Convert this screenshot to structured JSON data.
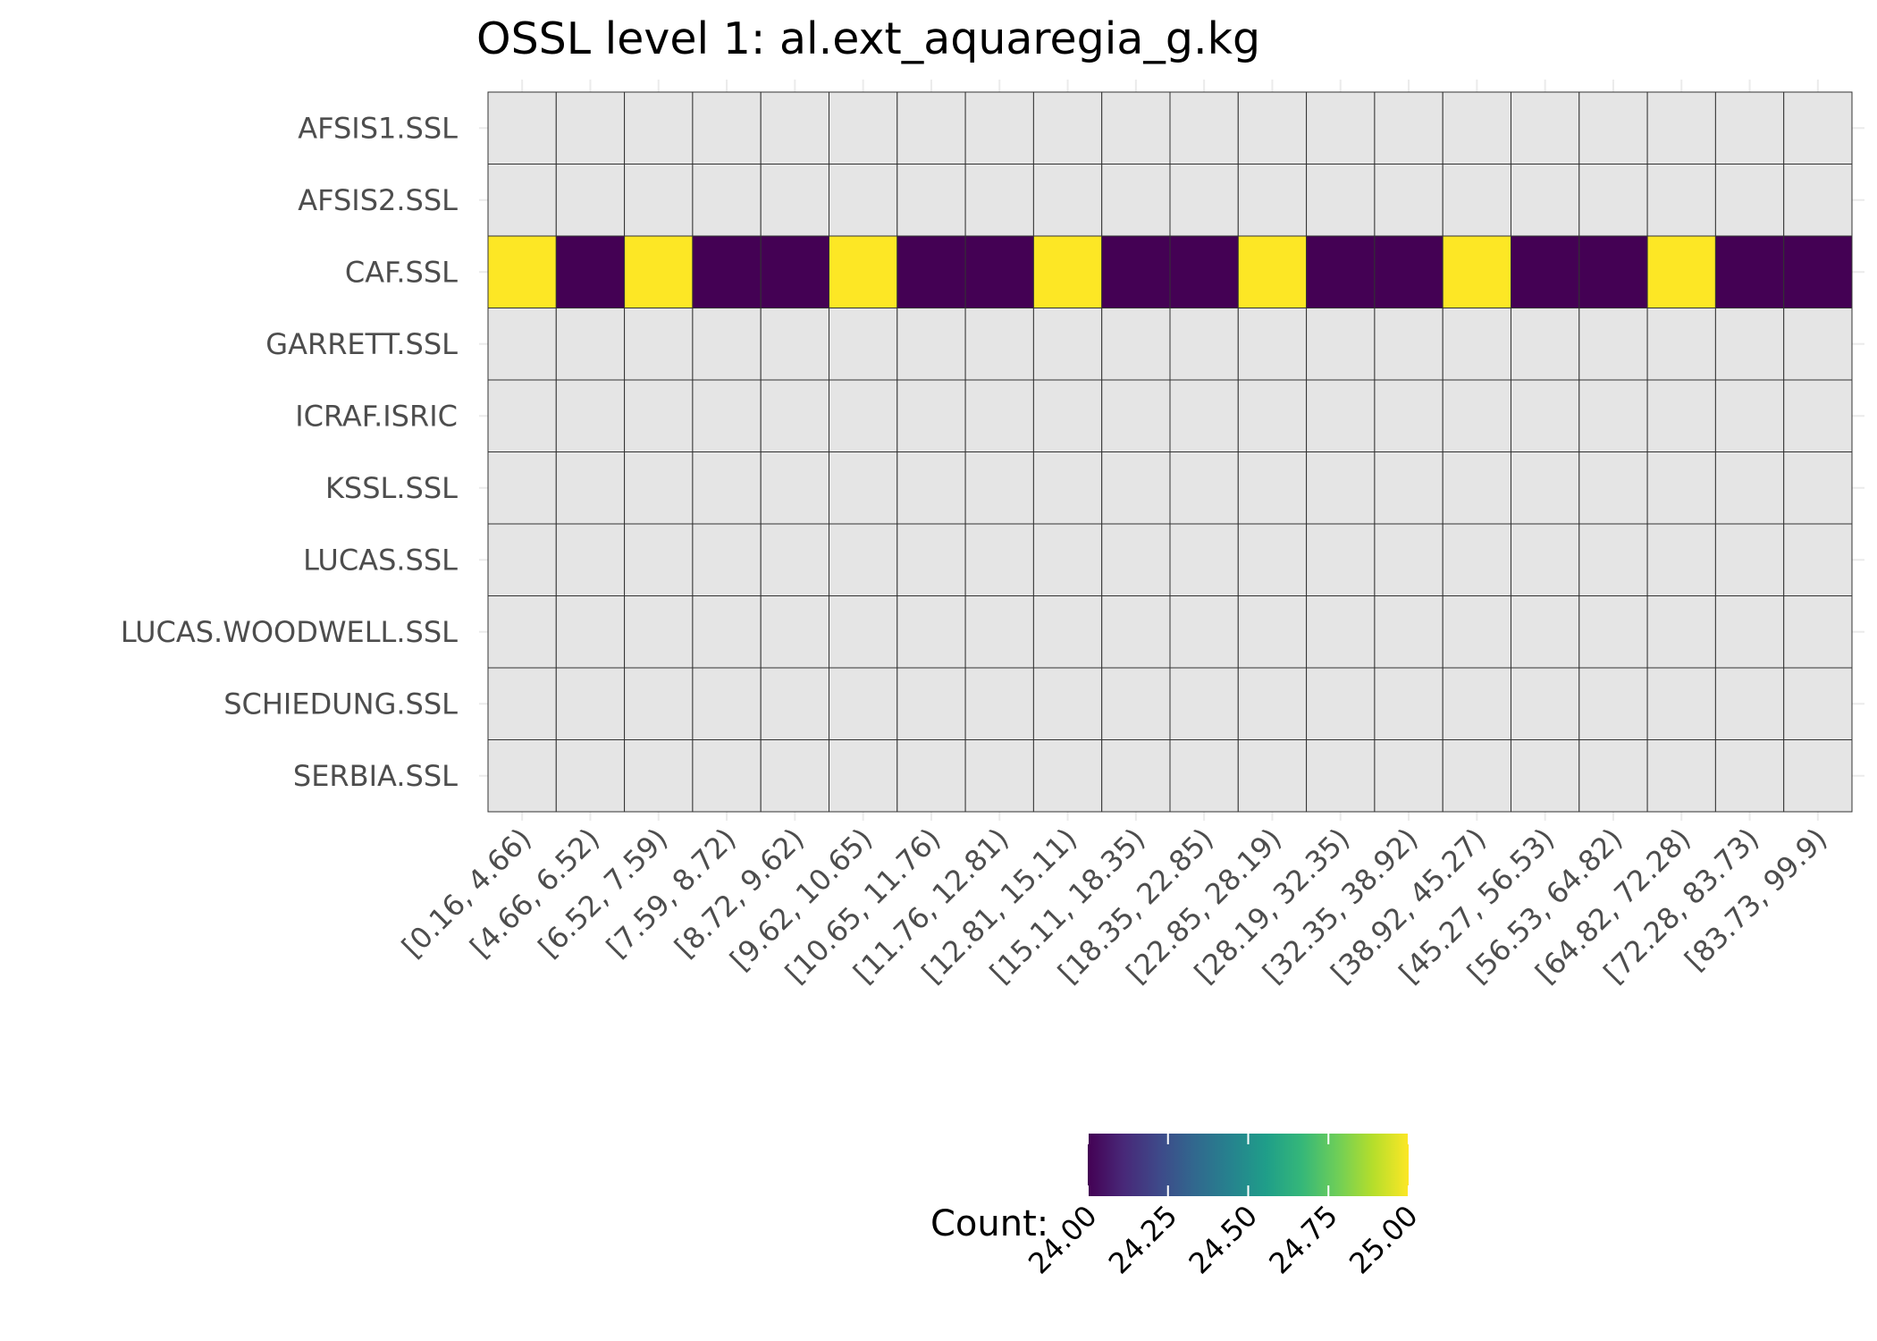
{
  "chart_data": {
    "type": "heatmap",
    "title": "OSSL level 1: al.ext_aquaregia_g.kg",
    "xlabel": "",
    "ylabel": "",
    "rows": [
      "AFSIS1.SSL",
      "AFSIS2.SSL",
      "CAF.SSL",
      "GARRETT.SSL",
      "ICRAF.ISRIC",
      "KSSL.SSL",
      "LUCAS.SSL",
      "LUCAS.WOODWELL.SSL",
      "SCHIEDUNG.SSL",
      "SERBIA.SSL"
    ],
    "columns": [
      "[0.16, 4.66)",
      "[4.66, 6.52)",
      "[6.52, 7.59)",
      "[7.59, 8.72)",
      "[8.72, 9.62)",
      "[9.62, 10.65)",
      "[10.65, 11.76)",
      "[11.76, 12.81)",
      "[12.81, 15.11)",
      "[15.11, 18.35)",
      "[18.35, 22.85)",
      "[22.85, 28.19)",
      "[28.19, 32.35)",
      "[32.35, 38.92)",
      "[38.92, 45.27)",
      "[45.27, 56.53)",
      "[56.53, 64.82)",
      "[64.82, 72.28)",
      "[72.28, 83.73)",
      "[83.73, 99.9)"
    ],
    "values": [
      [
        null,
        null,
        null,
        null,
        null,
        null,
        null,
        null,
        null,
        null,
        null,
        null,
        null,
        null,
        null,
        null,
        null,
        null,
        null,
        null
      ],
      [
        null,
        null,
        null,
        null,
        null,
        null,
        null,
        null,
        null,
        null,
        null,
        null,
        null,
        null,
        null,
        null,
        null,
        null,
        null,
        null
      ],
      [
        25,
        24,
        25,
        24,
        24,
        25,
        24,
        24,
        25,
        24,
        24,
        25,
        24,
        24,
        25,
        24,
        24,
        25,
        24,
        24
      ],
      [
        null,
        null,
        null,
        null,
        null,
        null,
        null,
        null,
        null,
        null,
        null,
        null,
        null,
        null,
        null,
        null,
        null,
        null,
        null,
        null
      ],
      [
        null,
        null,
        null,
        null,
        null,
        null,
        null,
        null,
        null,
        null,
        null,
        null,
        null,
        null,
        null,
        null,
        null,
        null,
        null,
        null
      ],
      [
        null,
        null,
        null,
        null,
        null,
        null,
        null,
        null,
        null,
        null,
        null,
        null,
        null,
        null,
        null,
        null,
        null,
        null,
        null,
        null
      ],
      [
        null,
        null,
        null,
        null,
        null,
        null,
        null,
        null,
        null,
        null,
        null,
        null,
        null,
        null,
        null,
        null,
        null,
        null,
        null,
        null
      ],
      [
        null,
        null,
        null,
        null,
        null,
        null,
        null,
        null,
        null,
        null,
        null,
        null,
        null,
        null,
        null,
        null,
        null,
        null,
        null,
        null
      ],
      [
        null,
        null,
        null,
        null,
        null,
        null,
        null,
        null,
        null,
        null,
        null,
        null,
        null,
        null,
        null,
        null,
        null,
        null,
        null,
        null
      ],
      [
        null,
        null,
        null,
        null,
        null,
        null,
        null,
        null,
        null,
        null,
        null,
        null,
        null,
        null,
        null,
        null,
        null,
        null,
        null,
        null
      ]
    ],
    "legend": {
      "title": "Count:",
      "ticks": [
        "24.00",
        "24.25",
        "24.50",
        "24.75",
        "25.00"
      ],
      "tick_values": [
        24,
        24.25,
        24.5,
        24.75,
        25
      ],
      "range": [
        24,
        25
      ],
      "placement": "bottom",
      "colormap": "viridis"
    },
    "colors": {
      "na_fill": "#e5e5e5",
      "cell_border": "#333333",
      "low": "#440154",
      "high": "#fde725"
    },
    "grid": true
  }
}
